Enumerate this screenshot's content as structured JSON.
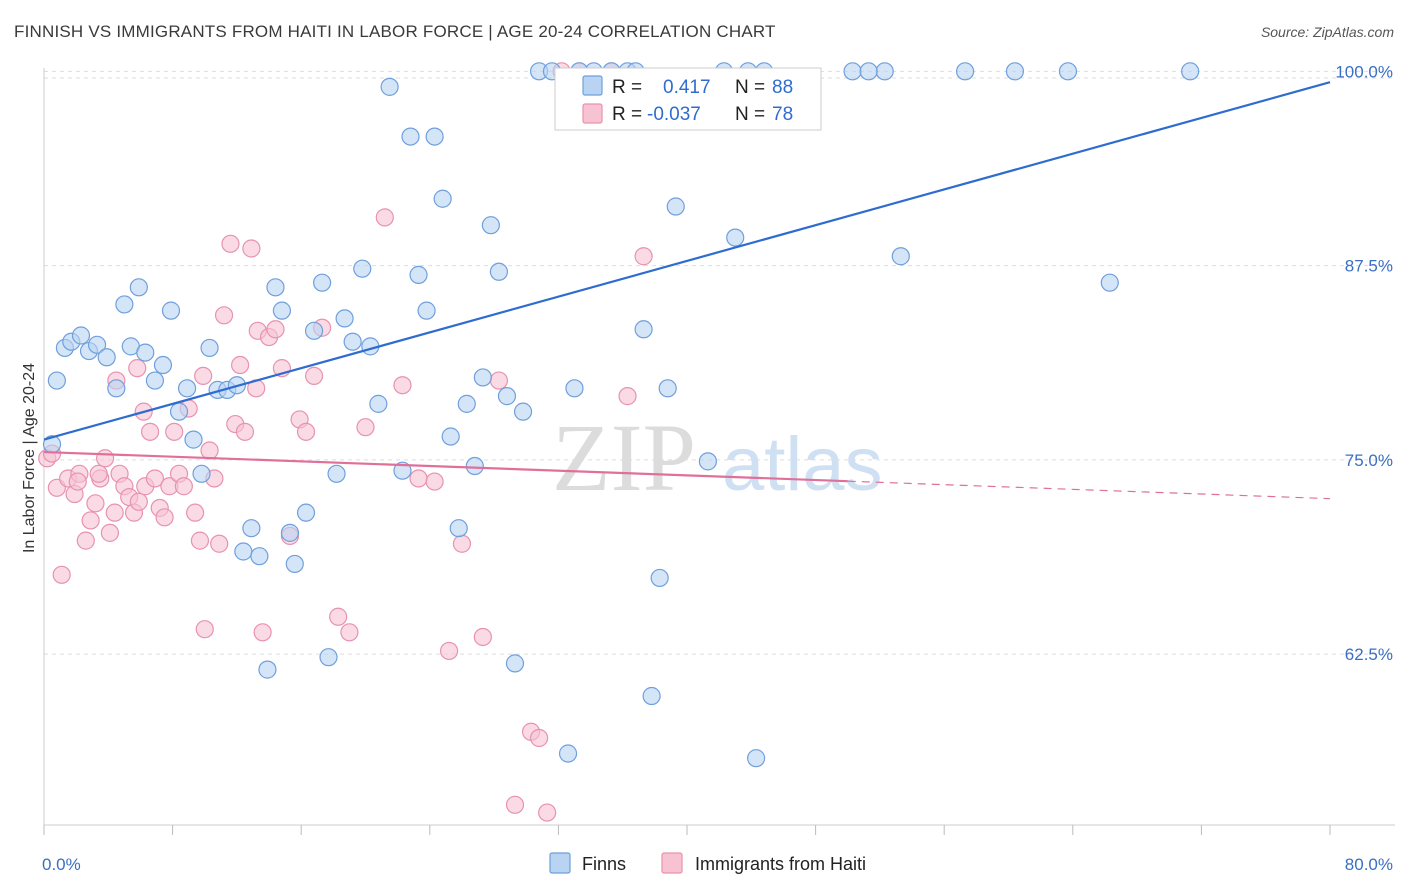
{
  "title": "FINNISH VS IMMIGRANTS FROM HAITI IN LABOR FORCE | AGE 20-24 CORRELATION CHART",
  "source": "Source: ZipAtlas.com",
  "watermark": {
    "zip": "ZIP",
    "atlas": "atlas"
  },
  "colors": {
    "finns_fill": "#b9d3f3",
    "finns_stroke": "#6f9fdc",
    "finns_line": "#2f6ccf",
    "haiti_fill": "#f7c3d3",
    "haiti_stroke": "#e892ae",
    "haiti_line": "#e0709a",
    "grid": "#dddddd",
    "axis_text": "#3a6fc4"
  },
  "legend": {
    "rows": [
      {
        "r_label": "R =",
        "r_value": "0.417",
        "n_label": "N =",
        "n_value": "88"
      },
      {
        "r_label": "R =",
        "r_value": "-0.037",
        "n_label": "N =",
        "n_value": "78"
      }
    ]
  },
  "bottom_legend": [
    "Finns",
    "Immigrants from Haiti"
  ],
  "chart_data": {
    "type": "scatter",
    "xlabel": "",
    "ylabel": "In Labor Force | Age 20-24",
    "xlim": [
      0,
      80
    ],
    "ylim": [
      51.5,
      100.6
    ],
    "x_tick_labels": [
      {
        "value": 0,
        "label": "0.0%"
      },
      {
        "value": 80,
        "label": "80.0%"
      }
    ],
    "y_tick_labels": [
      {
        "value": 100,
        "label": "100.0%"
      },
      {
        "value": 87.5,
        "label": "87.5%"
      },
      {
        "value": 75,
        "label": "75.0%"
      },
      {
        "value": 62.5,
        "label": "62.5%"
      }
    ],
    "series": [
      {
        "name": "Finns",
        "trend": {
          "x0": 0,
          "y0": 76.3,
          "x1": 80,
          "y1": 99.3
        },
        "points": [
          [
            0.5,
            76
          ],
          [
            0.8,
            80.1
          ],
          [
            1.3,
            82.2
          ],
          [
            1.7,
            82.6
          ],
          [
            2.3,
            83
          ],
          [
            2.8,
            82
          ],
          [
            3.3,
            82.4
          ],
          [
            3.9,
            81.6
          ],
          [
            4.5,
            79.6
          ],
          [
            5,
            85
          ],
          [
            5.4,
            82.3
          ],
          [
            5.9,
            86.1
          ],
          [
            6.3,
            81.9
          ],
          [
            6.9,
            80.1
          ],
          [
            7.4,
            81.1
          ],
          [
            7.9,
            84.6
          ],
          [
            8.4,
            78.1
          ],
          [
            8.9,
            79.6
          ],
          [
            9.3,
            76.3
          ],
          [
            9.8,
            74.1
          ],
          [
            10.3,
            82.2
          ],
          [
            10.8,
            79.5
          ],
          [
            11.4,
            79.5
          ],
          [
            12,
            79.8
          ],
          [
            12.4,
            69.1
          ],
          [
            12.9,
            70.6
          ],
          [
            13.4,
            68.8
          ],
          [
            13.9,
            61.5
          ],
          [
            14.4,
            86.1
          ],
          [
            14.8,
            84.6
          ],
          [
            15.3,
            70.3
          ],
          [
            15.6,
            68.3
          ],
          [
            16.3,
            71.6
          ],
          [
            16.8,
            83.3
          ],
          [
            17.3,
            86.4
          ],
          [
            17.7,
            62.3
          ],
          [
            18.2,
            74.1
          ],
          [
            18.7,
            84.1
          ],
          [
            19.2,
            82.6
          ],
          [
            19.8,
            87.3
          ],
          [
            20.3,
            82.3
          ],
          [
            20.8,
            78.6
          ],
          [
            21.5,
            99
          ],
          [
            22.3,
            74.3
          ],
          [
            22.8,
            95.8
          ],
          [
            23.3,
            86.9
          ],
          [
            23.8,
            84.6
          ],
          [
            24.3,
            95.8
          ],
          [
            24.8,
            91.8
          ],
          [
            25.3,
            76.5
          ],
          [
            25.8,
            70.6
          ],
          [
            26.3,
            78.6
          ],
          [
            26.8,
            74.6
          ],
          [
            27.3,
            80.3
          ],
          [
            27.8,
            90.1
          ],
          [
            28.3,
            87.1
          ],
          [
            28.8,
            79.1
          ],
          [
            29.3,
            61.9
          ],
          [
            29.8,
            78.1
          ],
          [
            30.8,
            100
          ],
          [
            31.6,
            100
          ],
          [
            32.6,
            56.1
          ],
          [
            33,
            79.6
          ],
          [
            34.2,
            100
          ],
          [
            35.3,
            100
          ],
          [
            36.3,
            100
          ],
          [
            37.3,
            83.4
          ],
          [
            37.8,
            59.8
          ],
          [
            38.3,
            67.4
          ],
          [
            38.8,
            79.6
          ],
          [
            39.3,
            91.3
          ],
          [
            41.3,
            74.9
          ],
          [
            42.3,
            100
          ],
          [
            43,
            89.3
          ],
          [
            43.8,
            100
          ],
          [
            44.3,
            55.8
          ],
          [
            44.8,
            100
          ],
          [
            50.3,
            100
          ],
          [
            52.3,
            100
          ],
          [
            53.3,
            88.1
          ],
          [
            57.3,
            100
          ],
          [
            60.4,
            100
          ],
          [
            63.7,
            100
          ],
          [
            66.3,
            86.4
          ],
          [
            71.3,
            100
          ],
          [
            51.3,
            100
          ],
          [
            33.3,
            100
          ],
          [
            36.8,
            100
          ]
        ]
      },
      {
        "name": "Immigrants from Haiti",
        "trend": {
          "x0": 0,
          "y0": 75.5,
          "x1": 80,
          "y1": 72.5,
          "solid_until_x": 50
        },
        "points": [
          [
            0.2,
            75.1
          ],
          [
            0.5,
            75.4
          ],
          [
            0.8,
            73.2
          ],
          [
            1.1,
            67.6
          ],
          [
            1.5,
            73.8
          ],
          [
            1.9,
            72.8
          ],
          [
            2.2,
            74.1
          ],
          [
            2.6,
            69.8
          ],
          [
            2.9,
            71.1
          ],
          [
            3.2,
            72.2
          ],
          [
            3.5,
            73.8
          ],
          [
            3.8,
            75.1
          ],
          [
            4.1,
            70.3
          ],
          [
            4.4,
            71.6
          ],
          [
            4.7,
            74.1
          ],
          [
            5,
            73.3
          ],
          [
            5.3,
            72.6
          ],
          [
            5.6,
            71.6
          ],
          [
            5.9,
            72.3
          ],
          [
            6.3,
            73.3
          ],
          [
            6.6,
            76.8
          ],
          [
            6.9,
            73.8
          ],
          [
            7.2,
            71.9
          ],
          [
            7.5,
            71.3
          ],
          [
            7.8,
            73.3
          ],
          [
            8.1,
            76.8
          ],
          [
            8.4,
            74.1
          ],
          [
            8.7,
            73.3
          ],
          [
            9,
            78.3
          ],
          [
            9.4,
            71.6
          ],
          [
            9.7,
            69.8
          ],
          [
            10,
            64.1
          ],
          [
            10.3,
            75.6
          ],
          [
            10.6,
            73.8
          ],
          [
            10.9,
            69.6
          ],
          [
            11.2,
            84.3
          ],
          [
            11.6,
            88.9
          ],
          [
            11.9,
            77.3
          ],
          [
            12.2,
            81.1
          ],
          [
            12.5,
            76.8
          ],
          [
            12.9,
            88.6
          ],
          [
            13.3,
            83.3
          ],
          [
            13.6,
            63.9
          ],
          [
            14,
            82.9
          ],
          [
            14.4,
            83.4
          ],
          [
            14.8,
            80.9
          ],
          [
            15.3,
            70.1
          ],
          [
            15.9,
            77.6
          ],
          [
            16.3,
            76.8
          ],
          [
            16.8,
            80.4
          ],
          [
            17.3,
            83.5
          ],
          [
            18.3,
            64.9
          ],
          [
            19,
            63.9
          ],
          [
            20,
            77.1
          ],
          [
            21.2,
            90.6
          ],
          [
            22.3,
            79.8
          ],
          [
            23.3,
            73.8
          ],
          [
            24.3,
            73.6
          ],
          [
            25.2,
            62.7
          ],
          [
            26,
            69.6
          ],
          [
            27.3,
            63.6
          ],
          [
            28.3,
            80.1
          ],
          [
            29.3,
            52.8
          ],
          [
            30.3,
            57.5
          ],
          [
            30.8,
            57.1
          ],
          [
            31.3,
            52.3
          ],
          [
            32.2,
            100
          ],
          [
            33.3,
            100
          ],
          [
            35.3,
            100
          ],
          [
            36.3,
            79.1
          ],
          [
            37.3,
            88.1
          ],
          [
            4.5,
            80.1
          ],
          [
            5.8,
            80.9
          ],
          [
            6.2,
            78.1
          ],
          [
            2.1,
            73.6
          ],
          [
            3.4,
            74.1
          ],
          [
            13.2,
            79.6
          ],
          [
            9.9,
            80.4
          ]
        ]
      }
    ]
  }
}
